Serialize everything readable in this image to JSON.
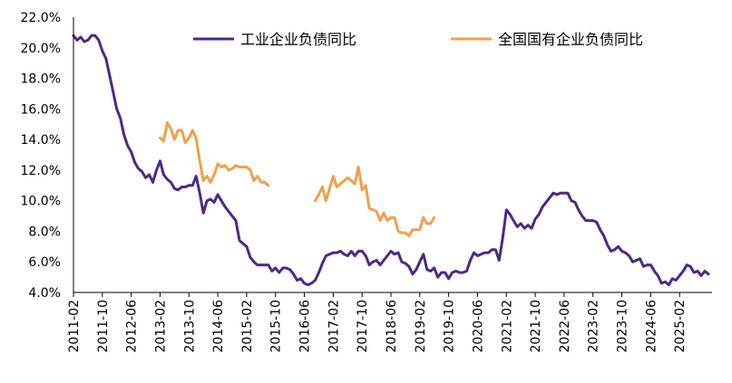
{
  "chart_data": {
    "type": "line",
    "title": "",
    "xlabel": "",
    "ylabel": "",
    "ylim": [
      4.0,
      22.0
    ],
    "y_ticks": [
      "4.0%",
      "6.0%",
      "8.0%",
      "10.0%",
      "12.0%",
      "14.0%",
      "16.0%",
      "18.0%",
      "20.0%",
      "22.0%"
    ],
    "x_ticks": [
      "2011-02",
      "2011-10",
      "2012-06",
      "2013-02",
      "2013-10",
      "2014-06",
      "2015-02",
      "2015-10",
      "2016-06",
      "2017-02",
      "2017-10",
      "2018-06",
      "2019-02",
      "2019-10",
      "2020-06",
      "2021-02",
      "2021-10",
      "2022-06",
      "2023-02",
      "2023-10",
      "2024-06",
      "2025-02"
    ],
    "grid": false,
    "legend_position": "top",
    "series": [
      {
        "name": "工业企业负债同比",
        "color": "#4b2a86",
        "points": [
          [
            "2011-02",
            20.8
          ],
          [
            "2011-03",
            20.5
          ],
          [
            "2011-04",
            20.7
          ],
          [
            "2011-05",
            20.4
          ],
          [
            "2011-06",
            20.5
          ],
          [
            "2011-07",
            20.8
          ],
          [
            "2011-08",
            20.8
          ],
          [
            "2011-09",
            20.5
          ],
          [
            "2011-10",
            19.8
          ],
          [
            "2011-11",
            19.3
          ],
          [
            "2011-12",
            18.2
          ],
          [
            "2012-01",
            17.1
          ],
          [
            "2012-02",
            16.0
          ],
          [
            "2012-03",
            15.4
          ],
          [
            "2012-04",
            14.3
          ],
          [
            "2012-05",
            13.6
          ],
          [
            "2012-06",
            13.2
          ],
          [
            "2012-07",
            12.5
          ],
          [
            "2012-08",
            12.1
          ],
          [
            "2012-09",
            11.9
          ],
          [
            "2012-10",
            11.5
          ],
          [
            "2012-11",
            11.7
          ],
          [
            "2012-12",
            11.2
          ],
          [
            "2013-01",
            12.0
          ],
          [
            "2013-02",
            12.6
          ],
          [
            "2013-03",
            11.7
          ],
          [
            "2013-04",
            11.4
          ],
          [
            "2013-05",
            11.2
          ],
          [
            "2013-06",
            10.8
          ],
          [
            "2013-07",
            10.7
          ],
          [
            "2013-08",
            10.9
          ],
          [
            "2013-09",
            10.9
          ],
          [
            "2013-10",
            11.0
          ],
          [
            "2013-11",
            11.0
          ],
          [
            "2013-12",
            11.6
          ],
          [
            "2014-01",
            10.5
          ],
          [
            "2014-02",
            9.2
          ],
          [
            "2014-03",
            10.0
          ],
          [
            "2014-04",
            10.1
          ],
          [
            "2014-05",
            9.9
          ],
          [
            "2014-06",
            10.4
          ],
          [
            "2014-07",
            10.0
          ],
          [
            "2014-08",
            9.6
          ],
          [
            "2014-09",
            9.3
          ],
          [
            "2014-10",
            9.0
          ],
          [
            "2014-11",
            8.7
          ],
          [
            "2014-12",
            7.4
          ],
          [
            "2015-01",
            7.2
          ],
          [
            "2015-02",
            7.0
          ],
          [
            "2015-03",
            6.3
          ],
          [
            "2015-04",
            6.0
          ],
          [
            "2015-05",
            5.8
          ],
          [
            "2015-06",
            5.8
          ],
          [
            "2015-07",
            5.8
          ],
          [
            "2015-08",
            5.8
          ],
          [
            "2015-09",
            5.4
          ],
          [
            "2015-10",
            5.6
          ],
          [
            "2015-11",
            5.3
          ],
          [
            "2015-12",
            5.6
          ],
          [
            "2016-01",
            5.6
          ],
          [
            "2016-02",
            5.5
          ],
          [
            "2016-03",
            5.2
          ],
          [
            "2016-04",
            4.8
          ],
          [
            "2016-05",
            4.9
          ],
          [
            "2016-06",
            4.6
          ],
          [
            "2016-07",
            4.5
          ],
          [
            "2016-08",
            4.6
          ],
          [
            "2016-09",
            4.8
          ],
          [
            "2016-10",
            5.3
          ],
          [
            "2016-11",
            5.9
          ],
          [
            "2016-12",
            6.4
          ],
          [
            "2017-01",
            6.5
          ],
          [
            "2017-02",
            6.6
          ],
          [
            "2017-03",
            6.6
          ],
          [
            "2017-04",
            6.7
          ],
          [
            "2017-05",
            6.5
          ],
          [
            "2017-06",
            6.4
          ],
          [
            "2017-07",
            6.7
          ],
          [
            "2017-08",
            6.4
          ],
          [
            "2017-09",
            6.7
          ],
          [
            "2017-10",
            6.7
          ],
          [
            "2017-11",
            6.4
          ],
          [
            "2017-12",
            5.8
          ],
          [
            "2018-01",
            6.0
          ],
          [
            "2018-02",
            6.1
          ],
          [
            "2018-03",
            5.8
          ],
          [
            "2018-04",
            6.1
          ],
          [
            "2018-05",
            6.4
          ],
          [
            "2018-06",
            6.7
          ],
          [
            "2018-07",
            6.5
          ],
          [
            "2018-08",
            6.6
          ],
          [
            "2018-09",
            6.0
          ],
          [
            "2018-10",
            5.9
          ],
          [
            "2018-11",
            5.7
          ],
          [
            "2018-12",
            5.2
          ],
          [
            "2019-01",
            5.5
          ],
          [
            "2019-02",
            6.0
          ],
          [
            "2019-03",
            6.5
          ],
          [
            "2019-04",
            5.5
          ],
          [
            "2019-05",
            5.4
          ],
          [
            "2019-06",
            5.6
          ],
          [
            "2019-07",
            5.0
          ],
          [
            "2019-08",
            5.3
          ],
          [
            "2019-09",
            5.3
          ],
          [
            "2019-10",
            4.9
          ],
          [
            "2019-11",
            5.3
          ],
          [
            "2019-12",
            5.4
          ],
          [
            "2020-01",
            5.3
          ],
          [
            "2020-02",
            5.3
          ],
          [
            "2020-03",
            5.4
          ],
          [
            "2020-04",
            6.1
          ],
          [
            "2020-05",
            6.6
          ],
          [
            "2020-06",
            6.4
          ],
          [
            "2020-07",
            6.5
          ],
          [
            "2020-08",
            6.6
          ],
          [
            "2020-09",
            6.6
          ],
          [
            "2020-10",
            6.8
          ],
          [
            "2020-11",
            6.8
          ],
          [
            "2020-12",
            6.1
          ],
          [
            "2021-01",
            7.6
          ],
          [
            "2021-02",
            9.4
          ],
          [
            "2021-03",
            9.1
          ],
          [
            "2021-04",
            8.7
          ],
          [
            "2021-05",
            8.3
          ],
          [
            "2021-06",
            8.5
          ],
          [
            "2021-07",
            8.2
          ],
          [
            "2021-08",
            8.4
          ],
          [
            "2021-09",
            8.2
          ],
          [
            "2021-10",
            8.8
          ],
          [
            "2021-11",
            9.1
          ],
          [
            "2021-12",
            9.6
          ],
          [
            "2022-01",
            9.9
          ],
          [
            "2022-02",
            10.2
          ],
          [
            "2022-03",
            10.5
          ],
          [
            "2022-04",
            10.4
          ],
          [
            "2022-05",
            10.5
          ],
          [
            "2022-06",
            10.5
          ],
          [
            "2022-07",
            10.5
          ],
          [
            "2022-08",
            10.0
          ],
          [
            "2022-09",
            9.9
          ],
          [
            "2022-10",
            9.4
          ],
          [
            "2022-11",
            9.0
          ],
          [
            "2022-12",
            8.7
          ],
          [
            "2023-01",
            8.7
          ],
          [
            "2023-02",
            8.7
          ],
          [
            "2023-03",
            8.6
          ],
          [
            "2023-04",
            8.1
          ],
          [
            "2023-05",
            7.7
          ],
          [
            "2023-06",
            7.1
          ],
          [
            "2023-07",
            6.7
          ],
          [
            "2023-08",
            6.8
          ],
          [
            "2023-09",
            7.0
          ],
          [
            "2023-10",
            6.7
          ],
          [
            "2023-11",
            6.6
          ],
          [
            "2023-12",
            6.4
          ],
          [
            "2024-01",
            6.0
          ],
          [
            "2024-02",
            6.1
          ],
          [
            "2024-03",
            6.2
          ],
          [
            "2024-04",
            5.7
          ],
          [
            "2024-05",
            5.8
          ],
          [
            "2024-06",
            5.8
          ],
          [
            "2024-07",
            5.4
          ],
          [
            "2024-08",
            5.1
          ],
          [
            "2024-09",
            4.6
          ],
          [
            "2024-10",
            4.7
          ],
          [
            "2024-11",
            4.5
          ],
          [
            "2024-12",
            4.9
          ],
          [
            "2025-01",
            4.8
          ],
          [
            "2025-02",
            5.1
          ],
          [
            "2025-03",
            5.4
          ],
          [
            "2025-04",
            5.8
          ],
          [
            "2025-05",
            5.7
          ],
          [
            "2025-06",
            5.3
          ],
          [
            "2025-07",
            5.4
          ],
          [
            "2025-08",
            5.1
          ],
          [
            "2025-09",
            5.4
          ],
          [
            "2025-10",
            5.2
          ]
        ]
      },
      {
        "name": "全国国有企业负债同比",
        "color": "#f0a04b",
        "points": [
          [
            "2013-02",
            14.1
          ],
          [
            "2013-03",
            13.9
          ],
          [
            "2013-04",
            15.1
          ],
          [
            "2013-05",
            14.7
          ],
          [
            "2013-06",
            14.0
          ],
          [
            "2013-07",
            14.6
          ],
          [
            "2013-08",
            14.6
          ],
          [
            "2013-09",
            13.8
          ],
          [
            "2013-10",
            14.1
          ],
          [
            "2013-11",
            14.6
          ],
          [
            "2013-12",
            14.1
          ],
          [
            "2014-01",
            12.6
          ],
          [
            "2014-02",
            11.3
          ],
          [
            "2014-03",
            11.6
          ],
          [
            "2014-04",
            11.2
          ],
          [
            "2014-05",
            11.7
          ],
          [
            "2014-06",
            12.4
          ],
          [
            "2014-07",
            12.2
          ],
          [
            "2014-08",
            12.3
          ],
          [
            "2014-09",
            12.0
          ],
          [
            "2014-10",
            12.1
          ],
          [
            "2014-11",
            12.3
          ],
          [
            "2014-12",
            12.2
          ],
          [
            "2015-01",
            12.2
          ],
          [
            "2015-02",
            12.2
          ],
          [
            "2015-03",
            12.0
          ],
          [
            "2015-04",
            11.3
          ],
          [
            "2015-05",
            11.6
          ],
          [
            "2015-06",
            11.2
          ],
          [
            "2015-07",
            11.2
          ],
          [
            "2015-08",
            11.0
          ],
          [
            "2016-09",
            10.0
          ],
          [
            "2016-10",
            10.4
          ],
          [
            "2016-11",
            10.9
          ],
          [
            "2016-12",
            10.0
          ],
          [
            "2017-01",
            10.8
          ],
          [
            "2017-02",
            11.6
          ],
          [
            "2017-03",
            10.9
          ],
          [
            "2017-04",
            11.1
          ],
          [
            "2017-05",
            11.3
          ],
          [
            "2017-06",
            11.5
          ],
          [
            "2017-07",
            11.3
          ],
          [
            "2017-08",
            11.1
          ],
          [
            "2017-09",
            12.2
          ],
          [
            "2017-10",
            10.7
          ],
          [
            "2017-11",
            11.0
          ],
          [
            "2017-12",
            9.5
          ],
          [
            "2018-01",
            9.4
          ],
          [
            "2018-02",
            9.3
          ],
          [
            "2018-03",
            8.7
          ],
          [
            "2018-04",
            9.2
          ],
          [
            "2018-05",
            8.7
          ],
          [
            "2018-06",
            8.9
          ],
          [
            "2018-07",
            8.9
          ],
          [
            "2018-08",
            8.0
          ],
          [
            "2018-09",
            7.9
          ],
          [
            "2018-10",
            7.9
          ],
          [
            "2018-11",
            7.7
          ],
          [
            "2018-12",
            8.1
          ],
          [
            "2019-01",
            8.1
          ],
          [
            "2019-02",
            8.1
          ],
          [
            "2019-03",
            8.9
          ],
          [
            "2019-04",
            8.5
          ],
          [
            "2019-05",
            8.5
          ],
          [
            "2019-06",
            8.9
          ]
        ]
      }
    ]
  }
}
